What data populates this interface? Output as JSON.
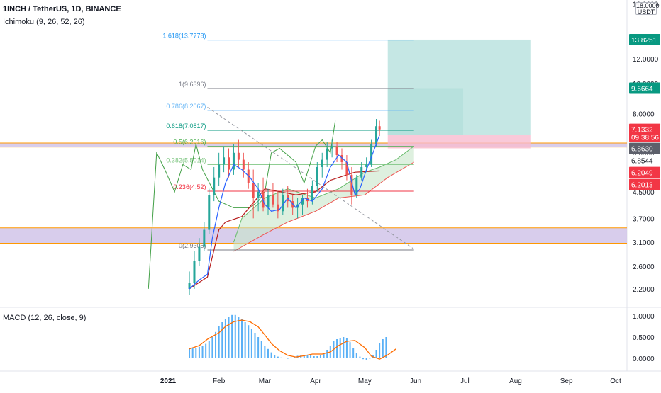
{
  "header": {
    "symbol_line": "1INCH / TetherUS, 1D, BINANCE",
    "ichimoku_label": "Ichimoku (9, 26, 52, 26)",
    "macd_label": "MACD (12, 26, close, 9)",
    "currency_top": "18.0000",
    "currency": "USDT"
  },
  "chart_data": {
    "type": "line",
    "price_axis": {
      "scale": "log",
      "ticks": [
        18.0,
        12.0,
        10.0,
        8.0,
        6.0,
        4.5,
        3.7,
        3.1,
        2.6,
        2.2
      ],
      "tick_labels": [
        "18.0000",
        "12.0000",
        "10.0000",
        "8.0000",
        "6.0000",
        "4.5000",
        "3.7000",
        "3.1000",
        "2.6000",
        "2.2000"
      ],
      "visible_labels": [
        "12.0000",
        "8.0000",
        "3.7000",
        "3.1000",
        "2.6000",
        "2.2000"
      ]
    },
    "time_axis": {
      "range": [
        "2020-12-01",
        "2021-10-20"
      ],
      "ticks": [
        {
          "label": "2021",
          "date": "2021-01-01"
        },
        {
          "label": "Feb",
          "date": "2021-02-01"
        },
        {
          "label": "Mar",
          "date": "2021-03-01"
        },
        {
          "label": "Apr",
          "date": "2021-04-01"
        },
        {
          "label": "May",
          "date": "2021-05-01"
        },
        {
          "label": "Jun",
          "date": "2021-06-01"
        },
        {
          "label": "Jul",
          "date": "2021-07-01"
        },
        {
          "label": "Aug",
          "date": "2021-08-01"
        },
        {
          "label": "Sep",
          "date": "2021-09-01"
        },
        {
          "label": "Oct",
          "date": "2021-10-01"
        }
      ]
    },
    "fibonacci": {
      "start_date": "2021-01-25",
      "end_date": "2021-05-31",
      "levels": [
        {
          "ratio": "1.618",
          "value": 13.7778,
          "label": "1.618(13.7778)",
          "color": "#2196f3"
        },
        {
          "ratio": "1",
          "value": 9.6396,
          "label": "1(9.6396)",
          "color": "#787b86"
        },
        {
          "ratio": "0.786",
          "value": 8.2067,
          "label": "0.786(8.2067)",
          "color": "#64b5f6"
        },
        {
          "ratio": "0.618",
          "value": 7.0817,
          "label": "0.618(7.0817)",
          "color": "#089981"
        },
        {
          "ratio": "0.5",
          "value": 6.2916,
          "label": "0.5(6.2916)",
          "color": "#4caf50"
        },
        {
          "ratio": "0.382",
          "value": 5.5014,
          "label": "0.382(5.5014)",
          "color": "#81c784"
        },
        {
          "ratio": "0.236",
          "value": 4.52,
          "label": "0.236(4.52)",
          "color": "#f23645"
        },
        {
          "ratio": "0",
          "value": 2.9305,
          "label": "0(2.9305)",
          "color": "#787b86"
        }
      ]
    },
    "zones": [
      {
        "low": 6.26,
        "high": 6.45,
        "color": "#d1c4e9",
        "border": "#ff9800"
      },
      {
        "low": 3.08,
        "high": 3.45,
        "color": "#d1c4e9",
        "border": "#ff9800"
      }
    ],
    "trendline": {
      "from": [
        "2021-01-25",
        8.4
      ],
      "to": [
        "2021-05-31",
        2.95
      ],
      "color": "#9598a1"
    },
    "position_tool": {
      "from": "2021-05-15",
      "to": "2021-08-10",
      "entry": 6.86,
      "target_steps": [
        {
          "to": "2021-06-30",
          "price": 9.6664
        },
        {
          "to": "2021-08-10",
          "price": 13.8251
        }
      ],
      "stop": 6.2,
      "target_color": "#b2dfdb",
      "stop_color": "#f8bbd0"
    },
    "ichimoku": {
      "tenkan_color": "#2962ff",
      "kijun_color": "#b71c1c",
      "chikou_color": "#43a047",
      "cloud_color": "#c8e6c9",
      "senkou_b_color": "#ef5350",
      "tenkan": [
        [
          "2021-01-14",
          2.2
        ],
        [
          "2021-01-20",
          2.35
        ],
        [
          "2021-01-25",
          2.45
        ],
        [
          "2021-01-28",
          3.2
        ],
        [
          "2021-02-01",
          4.0
        ],
        [
          "2021-02-05",
          4.8
        ],
        [
          "2021-02-10",
          5.5
        ],
        [
          "2021-02-15",
          5.3
        ],
        [
          "2021-02-20",
          5.0
        ],
        [
          "2021-02-25",
          4.6
        ],
        [
          "2021-03-01",
          4.1
        ],
        [
          "2021-03-05",
          3.9
        ],
        [
          "2021-03-10",
          3.95
        ],
        [
          "2021-03-15",
          4.3
        ],
        [
          "2021-03-20",
          4.0
        ],
        [
          "2021-03-25",
          4.3
        ],
        [
          "2021-03-30",
          4.2
        ],
        [
          "2021-04-05",
          4.6
        ],
        [
          "2021-04-10",
          5.4
        ],
        [
          "2021-04-15",
          5.9
        ],
        [
          "2021-04-20",
          5.6
        ],
        [
          "2021-04-25",
          4.4
        ],
        [
          "2021-04-28",
          4.6
        ],
        [
          "2021-05-02",
          5.3
        ],
        [
          "2021-05-06",
          6.0
        ],
        [
          "2021-05-10",
          6.85
        ]
      ],
      "kijun": [
        [
          "2021-01-14",
          2.2
        ],
        [
          "2021-01-25",
          2.4
        ],
        [
          "2021-02-01",
          3.4
        ],
        [
          "2021-02-05",
          3.6
        ],
        [
          "2021-02-15",
          3.75
        ],
        [
          "2021-03-01",
          4.6
        ],
        [
          "2021-03-20",
          4.4
        ],
        [
          "2021-04-01",
          4.5
        ],
        [
          "2021-04-10",
          4.9
        ],
        [
          "2021-04-20",
          5.1
        ],
        [
          "2021-04-25",
          5.2
        ],
        [
          "2021-05-10",
          5.25
        ]
      ],
      "chikou": [
        [
          "2020-12-20",
          2.2
        ],
        [
          "2020-12-25",
          6.0
        ],
        [
          "2020-12-30",
          5.3
        ],
        [
          "2021-01-05",
          4.5
        ],
        [
          "2021-01-10",
          5.5
        ],
        [
          "2021-01-15",
          5.3
        ],
        [
          "2021-01-18",
          6.4
        ],
        [
          "2021-01-22",
          5.3
        ],
        [
          "2021-02-01",
          4.2
        ],
        [
          "2021-02-10",
          4.0
        ],
        [
          "2021-02-20",
          4.0
        ],
        [
          "2021-02-25",
          4.2
        ],
        [
          "2021-03-01",
          4.5
        ],
        [
          "2021-03-05",
          6.0
        ],
        [
          "2021-03-10",
          6.2
        ],
        [
          "2021-03-20",
          5.6
        ],
        [
          "2021-03-25",
          4.8
        ],
        [
          "2021-04-01",
          6.3
        ],
        [
          "2021-04-05",
          6.6
        ],
        [
          "2021-04-10",
          6.0
        ],
        [
          "2021-04-13",
          7.6
        ]
      ],
      "senkou_a": [
        [
          "2021-02-10",
          3.1
        ],
        [
          "2021-02-15",
          3.7
        ],
        [
          "2021-03-01",
          4.3
        ],
        [
          "2021-03-15",
          4.6
        ],
        [
          "2021-04-01",
          4.3
        ],
        [
          "2021-04-15",
          4.6
        ],
        [
          "2021-05-01",
          5.2
        ],
        [
          "2021-05-10",
          5.4
        ],
        [
          "2021-05-20",
          5.7
        ],
        [
          "2021-05-31",
          6.3
        ]
      ],
      "senkou_b": [
        [
          "2021-02-10",
          2.9
        ],
        [
          "2021-03-01",
          3.3
        ],
        [
          "2021-03-15",
          3.6
        ],
        [
          "2021-04-01",
          3.9
        ],
        [
          "2021-04-15",
          4.3
        ],
        [
          "2021-05-01",
          4.4
        ],
        [
          "2021-05-15",
          5.0
        ],
        [
          "2021-05-31",
          5.6
        ]
      ]
    },
    "candles": {
      "up_color": "#26a69a",
      "down_color": "#ef5350",
      "ohlc": [
        [
          "2021-01-14",
          2.2,
          2.5,
          2.1,
          2.3
        ],
        [
          "2021-01-17",
          2.3,
          2.9,
          2.2,
          2.7
        ],
        [
          "2021-01-20",
          2.7,
          3.2,
          2.6,
          3.0
        ],
        [
          "2021-01-23",
          3.0,
          3.6,
          2.9,
          3.4
        ],
        [
          "2021-01-26",
          3.4,
          4.6,
          3.3,
          4.4
        ],
        [
          "2021-01-29",
          4.4,
          5.4,
          4.2,
          5.0
        ],
        [
          "2021-02-01",
          5.0,
          6.0,
          4.7,
          5.5
        ],
        [
          "2021-02-04",
          5.5,
          6.3,
          5.2,
          5.8
        ],
        [
          "2021-02-07",
          5.8,
          6.2,
          5.0,
          5.3
        ],
        [
          "2021-02-10",
          5.3,
          6.4,
          5.1,
          6.0
        ],
        [
          "2021-02-13",
          6.0,
          6.6,
          5.4,
          5.7
        ],
        [
          "2021-02-16",
          5.7,
          6.0,
          5.0,
          5.3
        ],
        [
          "2021-02-19",
          5.3,
          5.6,
          4.6,
          4.8
        ],
        [
          "2021-02-22",
          4.8,
          5.3,
          3.7,
          4.3
        ],
        [
          "2021-02-25",
          4.3,
          4.8,
          3.9,
          4.5
        ],
        [
          "2021-02-28",
          4.5,
          5.0,
          3.9,
          4.0
        ],
        [
          "2021-03-03",
          4.0,
          4.6,
          3.8,
          4.4
        ],
        [
          "2021-03-06",
          4.4,
          4.8,
          4.0,
          4.1
        ],
        [
          "2021-03-09",
          4.1,
          4.5,
          3.7,
          3.9
        ],
        [
          "2021-03-12",
          3.9,
          4.6,
          3.8,
          4.4
        ],
        [
          "2021-03-15",
          4.4,
          4.7,
          4.0,
          4.2
        ],
        [
          "2021-03-18",
          4.2,
          4.4,
          3.8,
          4.0
        ],
        [
          "2021-03-21",
          4.0,
          4.3,
          3.7,
          4.1
        ],
        [
          "2021-03-24",
          4.1,
          4.4,
          3.8,
          4.3
        ],
        [
          "2021-03-27",
          4.3,
          4.6,
          4.0,
          4.2
        ],
        [
          "2021-03-30",
          4.2,
          4.9,
          4.1,
          4.7
        ],
        [
          "2021-04-02",
          4.7,
          5.6,
          4.5,
          5.4
        ],
        [
          "2021-04-05",
          5.4,
          6.0,
          5.0,
          5.7
        ],
        [
          "2021-04-08",
          5.7,
          6.5,
          5.4,
          6.2
        ],
        [
          "2021-04-11",
          6.2,
          6.6,
          5.8,
          6.3
        ],
        [
          "2021-04-14",
          6.3,
          6.5,
          5.6,
          5.9
        ],
        [
          "2021-04-17",
          5.9,
          6.2,
          5.3,
          5.6
        ],
        [
          "2021-04-20",
          5.6,
          5.9,
          4.9,
          5.1
        ],
        [
          "2021-04-23",
          5.1,
          5.4,
          4.1,
          4.4
        ],
        [
          "2021-04-26",
          4.4,
          5.1,
          4.3,
          5.0
        ],
        [
          "2021-04-29",
          5.0,
          5.6,
          4.9,
          5.4
        ],
        [
          "2021-05-02",
          5.4,
          5.8,
          5.2,
          5.5
        ],
        [
          "2021-05-05",
          5.5,
          6.6,
          5.4,
          6.4
        ],
        [
          "2021-05-08",
          6.4,
          7.7,
          6.3,
          7.3
        ],
        [
          "2021-05-10",
          7.3,
          7.6,
          6.8,
          7.13
        ]
      ]
    },
    "macd": {
      "axis_ticks": [
        1.0,
        0.5,
        0.0
      ],
      "tick_labels": [
        "1.0000",
        "0.5000",
        "0.0000"
      ],
      "signal_color": "#ff6d00",
      "hist_color": "#2196f3",
      "signal": [
        [
          "2021-01-14",
          0.22
        ],
        [
          "2021-01-20",
          0.3
        ],
        [
          "2021-01-25",
          0.45
        ],
        [
          "2021-02-01",
          0.6
        ],
        [
          "2021-02-05",
          0.75
        ],
        [
          "2021-02-10",
          0.86
        ],
        [
          "2021-02-15",
          0.9
        ],
        [
          "2021-02-20",
          0.86
        ],
        [
          "2021-02-25",
          0.74
        ],
        [
          "2021-03-01",
          0.55
        ],
        [
          "2021-03-05",
          0.35
        ],
        [
          "2021-03-10",
          0.18
        ],
        [
          "2021-03-15",
          0.07
        ],
        [
          "2021-03-20",
          0.03
        ],
        [
          "2021-03-25",
          0.06
        ],
        [
          "2021-03-30",
          0.1
        ],
        [
          "2021-04-05",
          0.1
        ],
        [
          "2021-04-10",
          0.15
        ],
        [
          "2021-04-15",
          0.3
        ],
        [
          "2021-04-20",
          0.4
        ],
        [
          "2021-04-25",
          0.42
        ],
        [
          "2021-05-01",
          0.25
        ],
        [
          "2021-05-05",
          0.05
        ],
        [
          "2021-05-10",
          -0.02
        ],
        [
          "2021-05-15",
          0.08
        ],
        [
          "2021-05-20",
          0.22
        ]
      ],
      "histogram": [
        [
          "2021-01-14",
          0.22
        ],
        [
          "2021-01-16",
          0.24
        ],
        [
          "2021-01-18",
          0.25
        ],
        [
          "2021-01-20",
          0.27
        ],
        [
          "2021-01-22",
          0.3
        ],
        [
          "2021-01-24",
          0.34
        ],
        [
          "2021-01-26",
          0.4
        ],
        [
          "2021-01-28",
          0.5
        ],
        [
          "2021-01-30",
          0.62
        ],
        [
          "2021-02-01",
          0.75
        ],
        [
          "2021-02-03",
          0.85
        ],
        [
          "2021-02-05",
          0.93
        ],
        [
          "2021-02-07",
          0.98
        ],
        [
          "2021-02-09",
          1.02
        ],
        [
          "2021-02-11",
          1.02
        ],
        [
          "2021-02-13",
          0.98
        ],
        [
          "2021-02-15",
          0.92
        ],
        [
          "2021-02-17",
          0.85
        ],
        [
          "2021-02-19",
          0.78
        ],
        [
          "2021-02-21",
          0.7
        ],
        [
          "2021-02-23",
          0.6
        ],
        [
          "2021-02-25",
          0.5
        ],
        [
          "2021-02-27",
          0.4
        ],
        [
          "2021-03-01",
          0.3
        ],
        [
          "2021-03-03",
          0.22
        ],
        [
          "2021-03-05",
          0.14
        ],
        [
          "2021-03-07",
          0.08
        ],
        [
          "2021-03-09",
          0.04
        ],
        [
          "2021-03-11",
          0.02
        ],
        [
          "2021-03-13",
          0.01
        ],
        [
          "2021-03-15",
          0.0
        ],
        [
          "2021-03-17",
          0.02
        ],
        [
          "2021-03-19",
          0.04
        ],
        [
          "2021-03-21",
          0.06
        ],
        [
          "2021-03-23",
          0.07
        ],
        [
          "2021-03-25",
          0.07
        ],
        [
          "2021-03-27",
          0.08
        ],
        [
          "2021-03-29",
          0.07
        ],
        [
          "2021-03-31",
          0.05
        ],
        [
          "2021-04-02",
          0.05
        ],
        [
          "2021-04-04",
          0.07
        ],
        [
          "2021-04-06",
          0.12
        ],
        [
          "2021-04-08",
          0.2
        ],
        [
          "2021-04-10",
          0.3
        ],
        [
          "2021-04-12",
          0.4
        ],
        [
          "2021-04-14",
          0.45
        ],
        [
          "2021-04-16",
          0.48
        ],
        [
          "2021-04-18",
          0.5
        ],
        [
          "2021-04-20",
          0.47
        ],
        [
          "2021-04-22",
          0.38
        ],
        [
          "2021-04-24",
          0.25
        ],
        [
          "2021-04-26",
          0.12
        ],
        [
          "2021-04-28",
          0.04
        ],
        [
          "2021-04-30",
          -0.02
        ],
        [
          "2021-05-02",
          -0.05
        ],
        [
          "2021-05-04",
          0.0
        ],
        [
          "2021-05-06",
          0.08
        ],
        [
          "2021-05-08",
          0.2
        ],
        [
          "2021-05-10",
          0.35
        ],
        [
          "2021-05-12",
          0.45
        ],
        [
          "2021-05-14",
          0.5
        ]
      ]
    },
    "price_badges": [
      {
        "value": 13.8251,
        "text": "13.8251",
        "color": "#089981",
        "text_color": "#ffffff"
      },
      {
        "value": 9.6664,
        "text": "9.6664",
        "color": "#089981",
        "text_color": "#ffffff"
      },
      {
        "value": 7.1332,
        "text": "7.1332",
        "sub": "09:38:56",
        "color": "#f23645",
        "text_color": "#ffffff"
      },
      {
        "value": 6.863,
        "text": "6.8630",
        "color": "#5d606b",
        "text_color": "#ffffff"
      },
      {
        "value": 6.8544,
        "text": "6.8544",
        "color": "#ffffff",
        "text_color": "#131722",
        "border": "#ffffff"
      },
      {
        "value": 6.2049,
        "text": "6.2049",
        "color": "#f23645",
        "text_color": "#ffffff"
      },
      {
        "value": 6.2013,
        "text": "6.2013",
        "color": "#f23645",
        "text_color": "#ffffff"
      }
    ]
  }
}
